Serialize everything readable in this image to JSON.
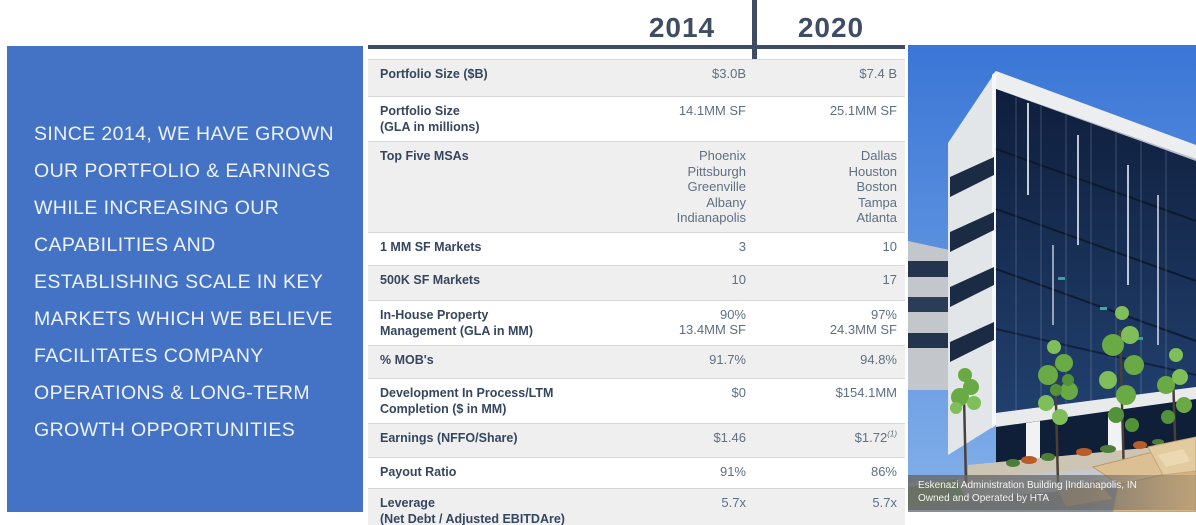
{
  "sidebar": {
    "headline_lines": [
      "SINCE 2014, WE HAVE GROWN",
      "OUR PORTFOLIO & EARNINGS",
      "WHILE INCREASING OUR",
      "CAPABILITIES AND",
      "ESTABLISHING SCALE IN KEY",
      "MARKETS WHICH WE BELIEVE",
      "FACILITATES COMPANY",
      "OPERATIONS & LONG-TERM",
      "GROWTH OPPORTUNITIES"
    ]
  },
  "table": {
    "col_2014": "2014",
    "col_2020": "2020",
    "rows": [
      {
        "label_lines": [
          "Portfolio Size ($B)"
        ],
        "v2014": [
          "$3.0B"
        ],
        "v2020": [
          "$7.4 B"
        ],
        "shaded": true
      },
      {
        "label_lines": [
          "Portfolio Size",
          "(GLA in millions)"
        ],
        "v2014": [
          "14.1MM SF"
        ],
        "v2020": [
          "25.1MM SF"
        ],
        "shaded": false
      },
      {
        "label_lines": [
          "Top Five MSAs"
        ],
        "v2014": [
          "Phoenix",
          "Pittsburgh",
          "Greenville",
          "Albany",
          "Indianapolis"
        ],
        "v2020": [
          "Dallas",
          "Houston",
          "Boston",
          "Tampa",
          "Atlanta"
        ],
        "shaded": true
      },
      {
        "label_lines": [
          "1 MM SF Markets"
        ],
        "v2014": [
          "3"
        ],
        "v2020": [
          "10"
        ],
        "shaded": false
      },
      {
        "label_lines": [
          "500K SF Markets"
        ],
        "v2014": [
          "10"
        ],
        "v2020": [
          "17"
        ],
        "shaded": true
      },
      {
        "label_lines": [
          "In-House Property",
          "Management (GLA in MM)"
        ],
        "v2014": [
          "90%",
          "13.4MM SF"
        ],
        "v2020": [
          "97%",
          "24.3MM SF"
        ],
        "shaded": false
      },
      {
        "label_lines": [
          "% MOB's"
        ],
        "v2014": [
          "91.7%"
        ],
        "v2020": [
          "94.8%"
        ],
        "shaded": true
      },
      {
        "label_lines": [
          "Development In Process/LTM",
          "Completion ($ in MM)"
        ],
        "v2014": [
          "$0"
        ],
        "v2020": [
          "$154.1MM"
        ],
        "shaded": false
      },
      {
        "label_lines": [
          "Earnings (NFFO/Share)"
        ],
        "v2014": [
          "$1.46"
        ],
        "v2020": [
          "$1.72"
        ],
        "v2020_sup": "(1)",
        "shaded": true
      },
      {
        "label_lines": [
          "Payout Ratio"
        ],
        "v2014": [
          "91%"
        ],
        "v2020": [
          "86%"
        ],
        "shaded": false
      },
      {
        "label_lines": [
          "Leverage",
          "(Net Debt / Adjusted EBITDAre)"
        ],
        "v2014": [
          "5.7x"
        ],
        "v2020": [
          "5.7x"
        ],
        "shaded": true
      }
    ]
  },
  "photo": {
    "caption_line1": "Eskenazi Administration Building |Indianapolis, IN",
    "caption_line2": "Owned and Operated by HTA"
  },
  "colors": {
    "accent_blue": "#4473C6",
    "table_dark": "#3E4D63",
    "label_navy": "#35465F",
    "value_gray": "#5E7083",
    "row_shade": "#EFEFEF"
  }
}
